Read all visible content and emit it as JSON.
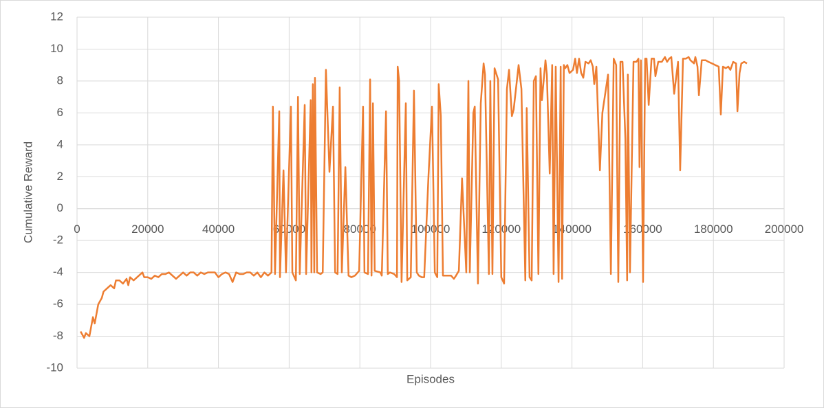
{
  "chart_data": {
    "type": "line",
    "xlabel": "Episodes",
    "ylabel": "Cumulative Reward",
    "xlim": [
      0,
      200000
    ],
    "ylim": [
      -10,
      12
    ],
    "xticks": [
      0,
      20000,
      40000,
      60000,
      80000,
      100000,
      120000,
      140000,
      160000,
      180000,
      200000
    ],
    "yticks": [
      -10,
      -8,
      -6,
      -4,
      -2,
      0,
      2,
      4,
      6,
      8,
      10,
      12
    ],
    "grid": true,
    "x": [
      1000,
      2000,
      2500,
      3500,
      4500,
      5000,
      6000,
      7000,
      7500,
      8500,
      9500,
      10500,
      11000,
      12000,
      13000,
      14000,
      14500,
      15000,
      16000,
      17000,
      18000,
      18500,
      19000,
      20000,
      21000,
      22000,
      23000,
      24000,
      25000,
      26000,
      27000,
      28000,
      29000,
      30000,
      31000,
      32000,
      33000,
      34000,
      35000,
      36000,
      37000,
      38000,
      39000,
      40000,
      41000,
      42000,
      43000,
      44000,
      45000,
      46000,
      47000,
      48000,
      49000,
      50000,
      51000,
      52000,
      53000,
      54000,
      55000,
      55400,
      56000,
      57200,
      57400,
      58400,
      59100,
      60500,
      60900,
      61900,
      62500,
      63000,
      64400,
      64800,
      66100,
      66300,
      66700,
      67100,
      67300,
      67900,
      68900,
      69500,
      70400,
      71400,
      72400,
      73000,
      73700,
      74300,
      74900,
      75900,
      76800,
      77600,
      78600,
      79800,
      80900,
      81300,
      82300,
      82900,
      83300,
      83700,
      84200,
      85800,
      86200,
      87400,
      87900,
      88500,
      89700,
      90500,
      90700,
      91100,
      91800,
      93000,
      93400,
      94400,
      95300,
      96100,
      96700,
      97500,
      98200,
      99400,
      100400,
      101200,
      101900,
      102300,
      102900,
      103500,
      105100,
      105800,
      106600,
      107200,
      108000,
      108900,
      110100,
      110700,
      111100,
      112100,
      112500,
      113400,
      114200,
      115000,
      115400,
      116500,
      116900,
      117500,
      118100,
      119100,
      120000,
      120800,
      121600,
      122200,
      123000,
      123500,
      124900,
      125700,
      126800,
      127200,
      128000,
      128600,
      129200,
      129800,
      130500,
      131100,
      131500,
      132500,
      132900,
      133700,
      134400,
      134800,
      135400,
      136200,
      136800,
      137200,
      137700,
      138100,
      138700,
      139300,
      140300,
      140900,
      141400,
      142000,
      142600,
      143200,
      143800,
      144700,
      145300,
      145900,
      146300,
      146900,
      147900,
      148600,
      150200,
      151000,
      151800,
      152500,
      153100,
      153700,
      154300,
      155100,
      155600,
      155800,
      156400,
      157400,
      158200,
      158800,
      159100,
      159500,
      160100,
      160700,
      161100,
      161700,
      162500,
      163200,
      163600,
      164400,
      165400,
      166300,
      166900,
      167500,
      168100,
      168900,
      170000,
      170600,
      171400,
      172200,
      173000,
      173500,
      174500,
      174900,
      175500,
      175900,
      176700,
      177000,
      177800,
      178600,
      179600,
      180500,
      181500,
      182100,
      182700,
      183500,
      184200,
      184800,
      185600,
      186400,
      186800,
      187400,
      187900,
      188700,
      189500
    ],
    "series": [
      {
        "name": "Cumulative Reward",
        "color": "#ed7d31",
        "values": [
          -7.7,
          -8.1,
          -7.8,
          -8.0,
          -6.8,
          -7.2,
          -6.0,
          -5.6,
          -5.2,
          -5.0,
          -4.8,
          -5.0,
          -4.5,
          -4.5,
          -4.7,
          -4.4,
          -4.8,
          -4.3,
          -4.5,
          -4.3,
          -4.1,
          -4.0,
          -4.3,
          -4.3,
          -4.4,
          -4.2,
          -4.3,
          -4.1,
          -4.1,
          -4.0,
          -4.2,
          -4.4,
          -4.2,
          -4.0,
          -4.2,
          -4.0,
          -4.0,
          -4.2,
          -4.0,
          -4.1,
          -4.0,
          -4.0,
          -4.0,
          -4.3,
          -4.1,
          -4.0,
          -4.1,
          -4.6,
          -4.0,
          -4.1,
          -4.1,
          -4.0,
          -4.0,
          -4.2,
          -4.0,
          -4.3,
          -4.0,
          -4.2,
          -4.0,
          6.4,
          -4.1,
          6.1,
          -4.3,
          2.4,
          -4.0,
          6.4,
          -4.0,
          -4.5,
          7.0,
          -4.1,
          6.5,
          -4.1,
          6.8,
          -4.0,
          7.8,
          -4.0,
          8.2,
          -4.0,
          -4.1,
          -4.0,
          8.7,
          2.3,
          6.4,
          -4.0,
          -4.1,
          7.6,
          -4.0,
          2.6,
          -4.2,
          -4.3,
          -4.2,
          -3.9,
          6.4,
          -4.0,
          -4.1,
          8.1,
          -4.2,
          6.6,
          -3.9,
          -4.0,
          -4.2,
          6.1,
          -4.1,
          -4.0,
          -4.1,
          -4.3,
          8.9,
          8.0,
          -4.6,
          6.6,
          -4.5,
          -4.3,
          7.4,
          -4.0,
          -4.2,
          -4.3,
          -4.3,
          2.0,
          6.4,
          -4.0,
          -4.3,
          7.8,
          5.8,
          -4.2,
          -4.2,
          -4.2,
          -4.4,
          -4.2,
          -3.9,
          1.9,
          -4.0,
          8.0,
          -4.0,
          6.0,
          6.4,
          -4.7,
          6.6,
          9.1,
          8.4,
          -4.1,
          8.0,
          -4.1,
          8.8,
          8.1,
          -4.3,
          -4.7,
          7.5,
          8.7,
          5.8,
          6.2,
          9.0,
          7.5,
          -4.5,
          6.3,
          -4.3,
          -4.5,
          8.0,
          8.3,
          -4.1,
          8.8,
          6.8,
          9.3,
          8.4,
          2.2,
          9.0,
          -4.1,
          8.9,
          -4.6,
          8.9,
          -4.4,
          9.0,
          8.8,
          9.0,
          8.5,
          8.7,
          9.4,
          8.5,
          9.4,
          8.5,
          8.2,
          9.2,
          9.1,
          9.3,
          8.9,
          7.8,
          8.9,
          2.4,
          6.0,
          8.4,
          -4.1,
          9.4,
          9.0,
          -4.6,
          9.2,
          9.2,
          4.4,
          -4.5,
          8.4,
          -4.0,
          9.2,
          9.2,
          9.4,
          2.6,
          9.3,
          -4.6,
          9.4,
          9.4,
          6.5,
          9.4,
          9.4,
          8.3,
          9.2,
          9.2,
          9.5,
          9.2,
          9.4,
          9.5,
          7.2,
          9.2,
          2.4,
          9.4,
          9.4,
          9.5,
          9.3,
          9.1,
          9.5,
          8.9,
          7.1,
          9.3,
          9.3,
          9.3,
          9.2,
          9.1,
          9.0,
          8.9,
          5.9,
          8.9,
          8.8,
          8.9,
          8.7,
          9.2,
          9.1,
          6.1,
          8.5,
          9.1,
          9.2,
          9.1
        ]
      }
    ]
  }
}
